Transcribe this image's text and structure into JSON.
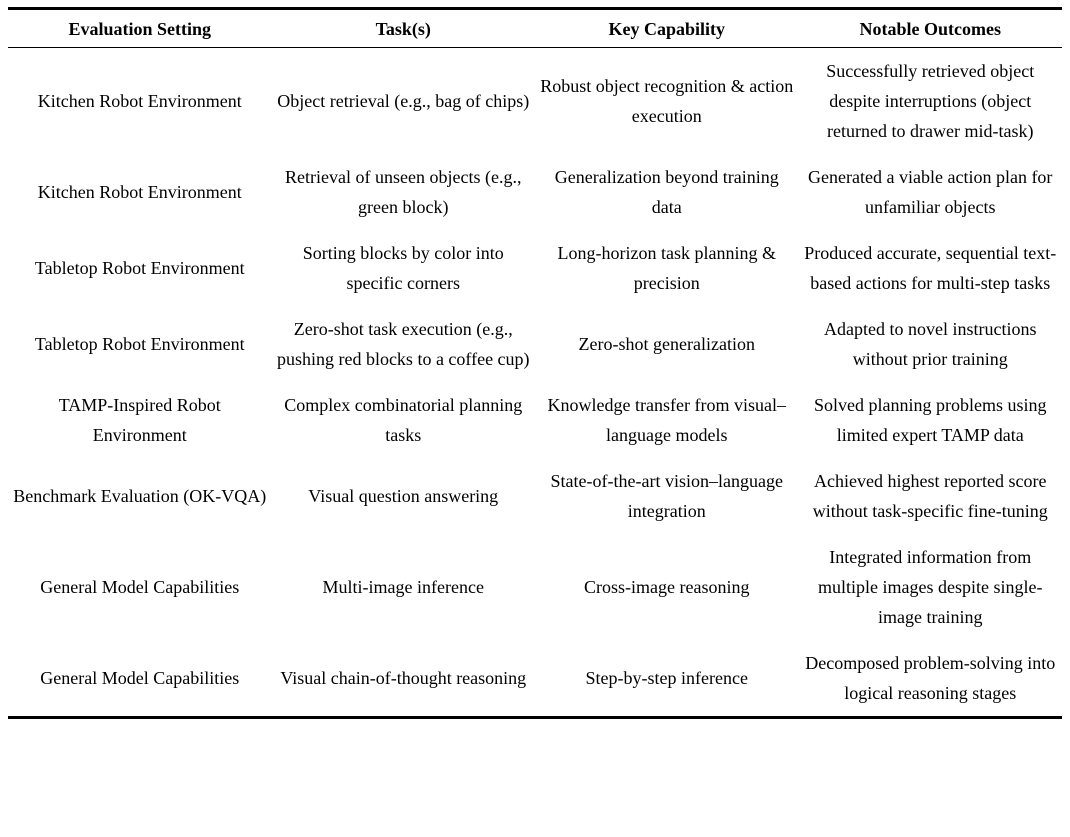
{
  "table": {
    "columns": [
      "Evaluation Setting",
      "Task(s)",
      "Key Capability",
      "Notable Outcomes"
    ],
    "rows": [
      [
        "Kitchen Robot Environment",
        "Object retrieval (e.g., bag of chips)",
        "Robust object recognition & action execution",
        "Successfully retrieved object despite interruptions (object returned to drawer mid-task)"
      ],
      [
        "Kitchen Robot Environment",
        "Retrieval of unseen objects (e.g., green block)",
        "Generalization beyond training data",
        "Generated a viable action plan for unfamiliar objects"
      ],
      [
        "Tabletop Robot Environment",
        "Sorting blocks by color into specific corners",
        "Long-horizon task planning & precision",
        "Produced accurate, sequential text-based actions for multi-step tasks"
      ],
      [
        "Tabletop Robot Environment",
        "Zero-shot task execution (e.g., pushing red blocks to a coffee cup)",
        "Zero-shot generalization",
        "Adapted to novel instructions without prior training"
      ],
      [
        "TAMP-Inspired Robot Environment",
        "Complex combinatorial planning tasks",
        "Knowledge transfer from visual–language models",
        "Solved planning problems using limited expert TAMP data"
      ],
      [
        "Benchmark Evaluation (OK-VQA)",
        "Visual question answering",
        "State-of-the-art vision–language integration",
        "Achieved highest reported score without task-specific fine-tuning"
      ],
      [
        "General Model Capabilities",
        "Multi-image inference",
        "Cross-image reasoning",
        "Integrated information from multiple images despite single-image training"
      ],
      [
        "General Model Capabilities",
        "Visual chain-of-thought reasoning",
        "Step-by-step inference",
        "Decomposed problem-solving into logical reasoning stages"
      ]
    ]
  },
  "colors": {
    "text": "#000000",
    "background": "#ffffff",
    "rule": "#000000"
  }
}
